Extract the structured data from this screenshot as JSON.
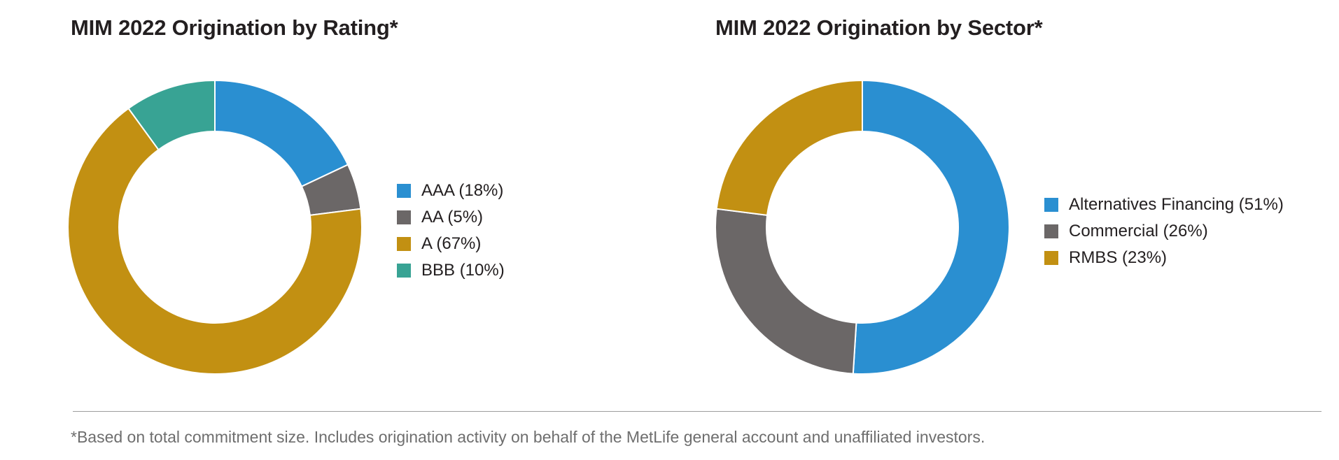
{
  "footnote": "*Based on total commitment size. Includes origination activity on behalf of the MetLife general account and unaffiliated investors.",
  "chart_data": [
    {
      "type": "pie",
      "donut": true,
      "title": "MIM 2022 Origination by Rating*",
      "unit": "%",
      "legend_position": "right",
      "start": "12 o'clock, clockwise",
      "slices": [
        {
          "label": "AAA (18%)",
          "category": "AAA",
          "value": 18,
          "color": "#2a8fd1"
        },
        {
          "label": "AA (5%)",
          "category": "AA",
          "value": 5,
          "color": "#6b6767"
        },
        {
          "label": "A (67%)",
          "category": "A",
          "value": 67,
          "color": "#c29012"
        },
        {
          "label": "BBB (10%)",
          "category": "BBB",
          "value": 10,
          "color": "#38a394"
        }
      ]
    },
    {
      "type": "pie",
      "donut": true,
      "title": "MIM 2022 Origination by Sector*",
      "unit": "%",
      "legend_position": "right",
      "start": "12 o'clock, clockwise",
      "slices": [
        {
          "label": "Alternatives Financing (51%)",
          "category": "Alternatives Financing",
          "value": 51,
          "color": "#2a8fd1"
        },
        {
          "label": "Commercial (26%)",
          "category": "Commercial",
          "value": 26,
          "color": "#6b6767"
        },
        {
          "label": "RMBS (23%)",
          "category": "RMBS",
          "value": 23,
          "color": "#c29012"
        }
      ]
    }
  ]
}
